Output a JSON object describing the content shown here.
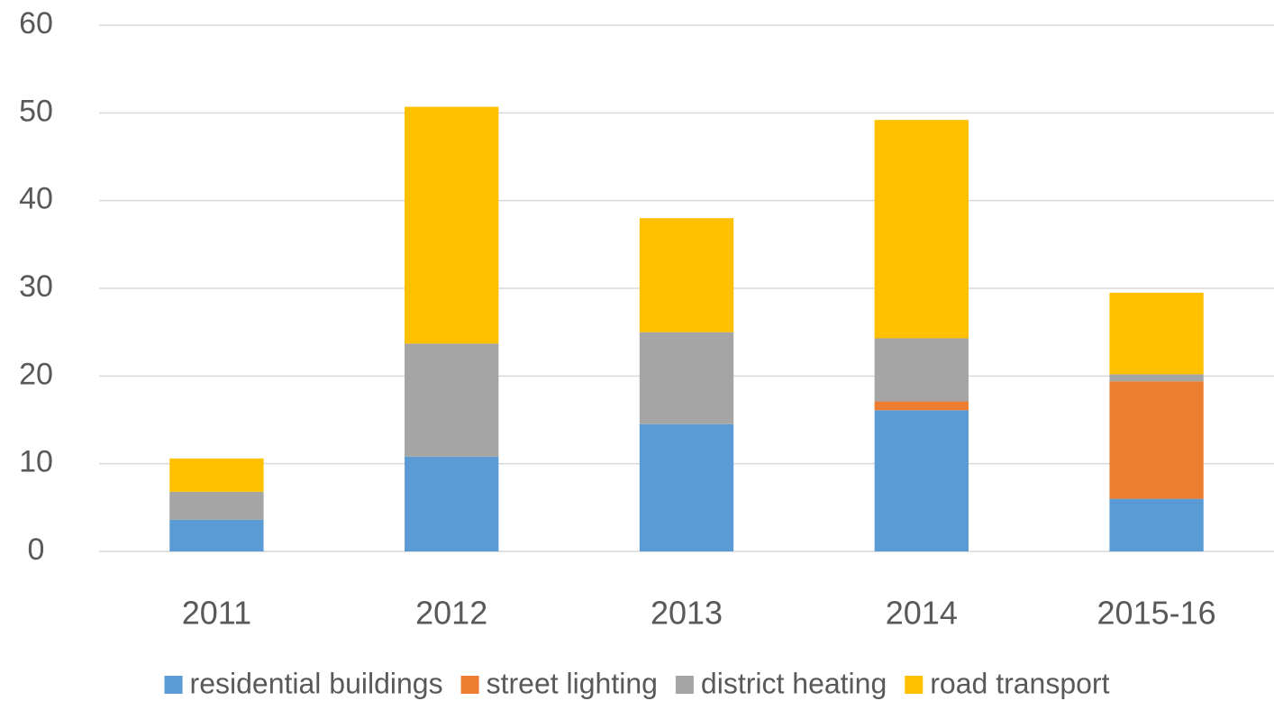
{
  "chart_data": {
    "type": "stacked_bar",
    "categories": [
      "2011",
      "2012",
      "2013",
      "2014",
      "2015-16"
    ],
    "series": [
      {
        "name": "residential buildings",
        "color": "#5b9bd5",
        "values": [
          3.6,
          10.8,
          14.5,
          16.1,
          6.0
        ]
      },
      {
        "name": "street lighting",
        "color": "#ed7d31",
        "values": [
          0,
          0,
          0,
          1.0,
          13.4
        ]
      },
      {
        "name": "district heating",
        "color": "#a5a5a5",
        "values": [
          3.2,
          12.9,
          10.5,
          7.2,
          0.8
        ]
      },
      {
        "name": "road transport",
        "color": "#ffc000",
        "values": [
          3.8,
          27.0,
          13.0,
          24.9,
          9.3
        ]
      }
    ],
    "ylim": [
      0,
      60
    ],
    "yticks": [
      0,
      10,
      20,
      30,
      40,
      50,
      60
    ],
    "grid": true,
    "legend": "bottom"
  }
}
